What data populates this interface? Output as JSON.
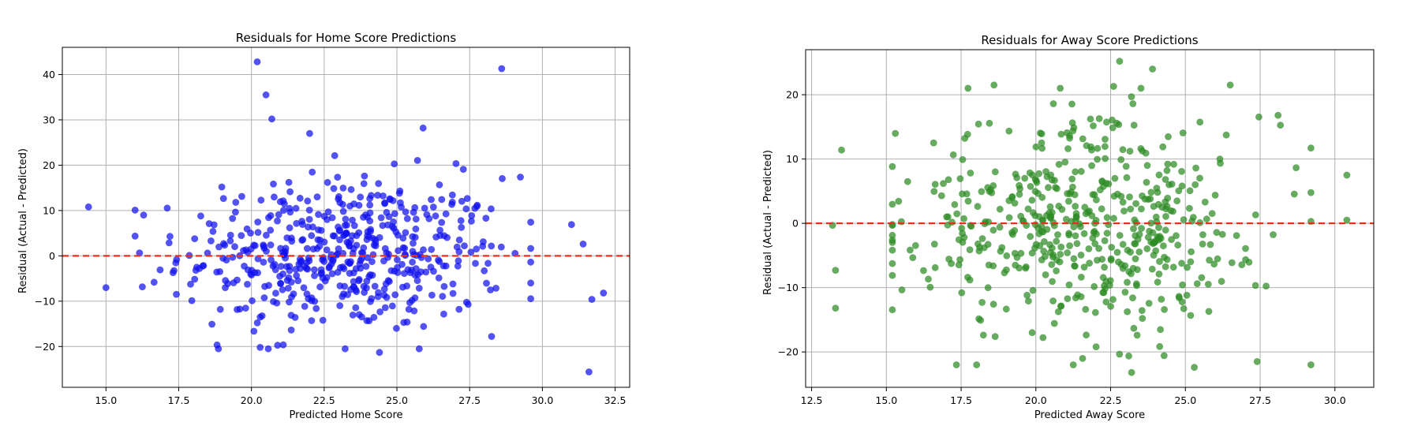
{
  "chart_data": [
    {
      "type": "scatter",
      "title": "Residuals for Home Score Predictions",
      "xlabel": "Predicted Home Score",
      "ylabel": "Residual (Actual - Predicted)",
      "xlim": [
        13.5,
        33.0
      ],
      "ylim": [
        -29.0,
        46.0
      ],
      "xticks": [
        15.0,
        17.5,
        20.0,
        22.5,
        25.0,
        27.5,
        30.0,
        32.5
      ],
      "xtick_labels": [
        "15.0",
        "17.5",
        "20.0",
        "22.5",
        "25.0",
        "27.5",
        "30.0",
        "32.5"
      ],
      "yticks": [
        -20,
        -10,
        0,
        10,
        20,
        30,
        40
      ],
      "ytick_labels": [
        "−20",
        "−10",
        "0",
        "10",
        "20",
        "30",
        "40"
      ],
      "grid": true,
      "reference_line": {
        "y": 0,
        "color": "#e8301f",
        "style": "dashed"
      },
      "point_color": "#1010ee",
      "n_points": 520,
      "notable_points": [
        {
          "x": 20.2,
          "y": 42.8
        },
        {
          "x": 28.6,
          "y": 41.3
        },
        {
          "x": 20.5,
          "y": 35.5
        },
        {
          "x": 20.7,
          "y": 30.2
        },
        {
          "x": 25.9,
          "y": 28.2
        },
        {
          "x": 22.0,
          "y": 27.0
        },
        {
          "x": 14.4,
          "y": 10.8
        },
        {
          "x": 15.0,
          "y": -7.0
        },
        {
          "x": 31.6,
          "y": -25.6
        },
        {
          "x": 32.1,
          "y": -8.2
        },
        {
          "x": 31.7,
          "y": -9.6
        },
        {
          "x": 31.4,
          "y": 2.6
        },
        {
          "x": 31.0,
          "y": 6.9
        },
        {
          "x": 24.4,
          "y": -21.3
        },
        {
          "x": 20.3,
          "y": -20.2
        }
      ]
    },
    {
      "type": "scatter",
      "title": "Residuals for Away Score Predictions",
      "xlabel": "Predicted Away Score",
      "ylabel": "Residual (Actual - Predicted)",
      "xlim": [
        12.3,
        31.3
      ],
      "ylim": [
        -25.5,
        27.0
      ],
      "xticks": [
        12.5,
        15.0,
        17.5,
        20.0,
        22.5,
        25.0,
        27.5,
        30.0
      ],
      "xtick_labels": [
        "12.5",
        "15.0",
        "17.5",
        "20.0",
        "22.5",
        "25.0",
        "27.5",
        "30.0"
      ],
      "yticks": [
        -20,
        -10,
        0,
        10,
        20
      ],
      "ytick_labels": [
        "−20",
        "−10",
        "0",
        "10",
        "20"
      ],
      "grid": true,
      "reference_line": {
        "y": 0,
        "color": "#e8301f",
        "style": "dashed"
      },
      "point_color": "#2d8a23",
      "n_points": 520,
      "notable_points": [
        {
          "x": 22.8,
          "y": 25.2
        },
        {
          "x": 23.9,
          "y": 24.0
        },
        {
          "x": 22.6,
          "y": 21.3
        },
        {
          "x": 26.5,
          "y": 21.5
        },
        {
          "x": 18.6,
          "y": 21.5
        },
        {
          "x": 13.5,
          "y": 11.4
        },
        {
          "x": 13.3,
          "y": -7.3
        },
        {
          "x": 13.3,
          "y": -13.2
        },
        {
          "x": 13.2,
          "y": -0.3
        },
        {
          "x": 30.4,
          "y": 7.5
        },
        {
          "x": 30.4,
          "y": 0.5
        },
        {
          "x": 28.1,
          "y": 16.8
        },
        {
          "x": 23.2,
          "y": -23.2
        },
        {
          "x": 25.3,
          "y": -22.4
        },
        {
          "x": 27.4,
          "y": -21.5
        }
      ]
    }
  ]
}
